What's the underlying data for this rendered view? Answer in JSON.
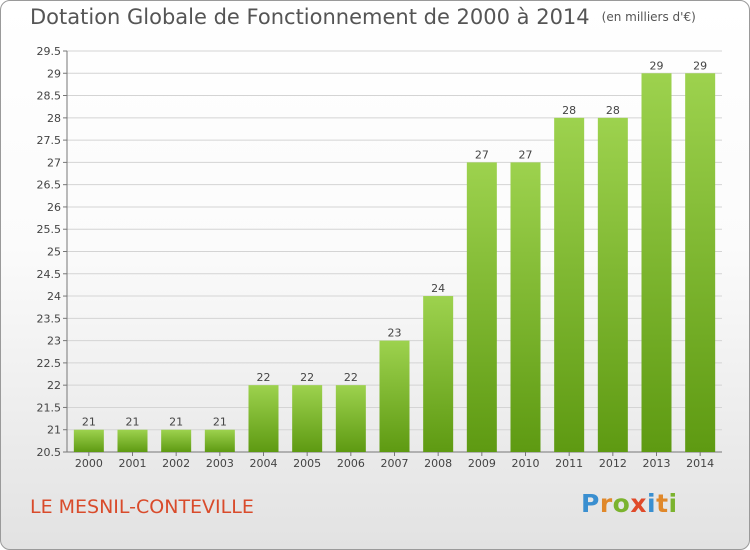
{
  "title": "Dotation Globale de Fonctionnement de 2000 à 2014",
  "unit_note": "(en milliers d'€)",
  "commune": "LE MESNIL-CONTEVILLE",
  "logo": {
    "text": "Proxiti",
    "letter_colors": [
      "#3a8fd0",
      "#e0882a",
      "#7bb32e",
      "#e04a2a",
      "#3a8fd0",
      "#e0882a",
      "#7bb32e"
    ]
  },
  "colors": {
    "bar_top": "#9dd24e",
    "bar_bottom": "#5e9a12",
    "title": "#555555",
    "commune": "#d94b2b",
    "grid": "#d4d4d4"
  },
  "chart_data": {
    "type": "bar",
    "title": "Dotation Globale de Fonctionnement de 2000 à 2014",
    "categories": [
      "2000",
      "2001",
      "2002",
      "2003",
      "2004",
      "2005",
      "2006",
      "2007",
      "2008",
      "2009",
      "2010",
      "2011",
      "2012",
      "2013",
      "2014"
    ],
    "values": [
      21,
      21,
      21,
      21,
      22,
      22,
      22,
      23,
      24,
      27,
      27,
      28,
      28,
      29,
      29
    ],
    "ylim": [
      20.5,
      29.5
    ],
    "yticks": [
      "20.5",
      "21",
      "21.5",
      "22",
      "22.5",
      "23",
      "23.5",
      "24",
      "24.5",
      "25",
      "25.5",
      "26",
      "26.5",
      "27",
      "27.5",
      "28",
      "28.5",
      "29",
      "29.5"
    ],
    "grid": true,
    "data_labels": true
  }
}
